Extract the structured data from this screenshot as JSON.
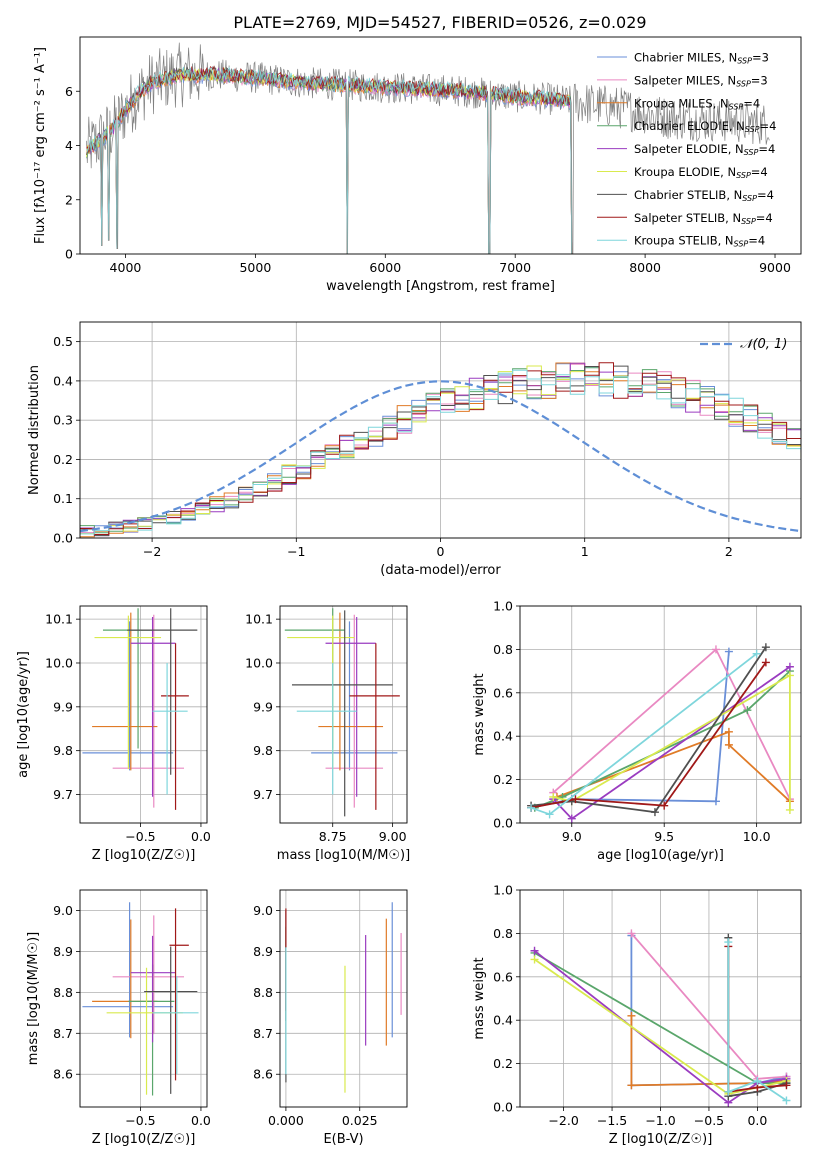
{
  "title": "PLATE=2769, MJD=54527, FIBERID=0526, z=0.029",
  "colors": [
    "#6a8fd8",
    "#e989c2",
    "#e07b27",
    "#5aa66b",
    "#9a3cc0",
    "#d9ea4e",
    "#505050",
    "#a01818",
    "#7fd6dc"
  ],
  "chart_data": [
    {
      "id": "spectrum",
      "type": "line",
      "xlabel": "wavelength [Angstrom, rest frame]",
      "ylabel": "Flux [fλ10⁻¹⁷ erg cm⁻² s⁻¹ A⁻¹]",
      "xlim": [
        3650,
        9200
      ],
      "ylim": [
        0,
        8
      ],
      "xticks": [
        4000,
        5000,
        6000,
        7000,
        8000,
        9000
      ],
      "yticks": [
        0,
        2,
        4,
        6
      ],
      "data_color": "#808080",
      "data_anchors": [
        [
          3700,
          3.8
        ],
        [
          3800,
          4.2
        ],
        [
          3900,
          4.6
        ],
        [
          4000,
          5.3
        ],
        [
          4100,
          5.9
        ],
        [
          4200,
          6.3
        ],
        [
          4400,
          6.6
        ],
        [
          4700,
          6.6
        ],
        [
          5000,
          6.5
        ],
        [
          5400,
          6.3
        ],
        [
          5800,
          6.2
        ],
        [
          6200,
          6.1
        ],
        [
          6600,
          6.0
        ],
        [
          7000,
          5.8
        ],
        [
          7300,
          5.7
        ],
        [
          7450,
          5.6
        ],
        [
          7800,
          5.4
        ],
        [
          8200,
          5.0
        ],
        [
          8600,
          4.9
        ],
        [
          8900,
          4.8
        ]
      ],
      "dips": [
        [
          3820,
          0.3
        ],
        [
          3870,
          0.5
        ],
        [
          3935,
          0.2
        ],
        [
          5710,
          0.0
        ],
        [
          6800,
          0.0
        ],
        [
          7440,
          0.0
        ]
      ],
      "model_xrange": [
        3700,
        7440
      ],
      "legend": [
        "Chabrier MILES, N_SSP=3",
        "Salpeter MILES, N_SSP=3",
        "Kroupa MILES, N_SSP=4",
        "Chabrier ELODIE, N_SSP=4",
        "Salpeter ELODIE, N_SSP=4",
        "Kroupa ELODIE, N_SSP=4",
        "Chabrier STELIB, N_SSP=4",
        "Salpeter STELIB, N_SSP=4",
        "Kroupa STELIB, N_SSP=4"
      ]
    },
    {
      "id": "residual-histogram",
      "type": "line",
      "xlabel": "(data-model)/error",
      "ylabel": "Normed distribution",
      "xlim": [
        -2.5,
        2.5
      ],
      "ylim": [
        0,
        0.55
      ],
      "xticks": [
        -2,
        -1,
        0,
        1,
        2
      ],
      "yticks": [
        0.0,
        0.1,
        0.2,
        0.3,
        0.4,
        0.5
      ],
      "bin_width": 0.1,
      "bin_start": -2.5,
      "hist_base": [
        0.018,
        0.02,
        0.025,
        0.03,
        0.036,
        0.043,
        0.052,
        0.062,
        0.073,
        0.085,
        0.098,
        0.112,
        0.127,
        0.143,
        0.16,
        0.177,
        0.195,
        0.213,
        0.232,
        0.25,
        0.268,
        0.285,
        0.302,
        0.318,
        0.332,
        0.345,
        0.357,
        0.368,
        0.377,
        0.385,
        0.392,
        0.397,
        0.4,
        0.403,
        0.404,
        0.404,
        0.402,
        0.399,
        0.394,
        0.388,
        0.38,
        0.371,
        0.36,
        0.348,
        0.334,
        0.32,
        0.304,
        0.288,
        0.271,
        0.253,
        0.235,
        0.217,
        0.199,
        0.181,
        0.164,
        0.147,
        0.131,
        0.116,
        0.102,
        0.089,
        0.077,
        0.066,
        0.056,
        0.048,
        0.041,
        0.035,
        0.031,
        0.028,
        0.025,
        0.023
      ],
      "gaussian_label": "𝒩(0, 1)",
      "gaussian_color": "#5f8fd6"
    },
    {
      "id": "age-vs-z",
      "type": "scatter",
      "xlabel": "Z [log10(Z/Z☉)]",
      "ylabel": "age  [log10(age/yr)]",
      "xlim": [
        -1.0,
        0.05
      ],
      "ylim": [
        9.635,
        10.13
      ],
      "xticks": [
        -0.5,
        0.0
      ],
      "yticks": [
        9.7,
        9.8,
        9.9,
        10.0,
        10.1
      ],
      "points": [
        {
          "x": -0.59,
          "y": 9.795,
          "xe": [
            0.39,
            0.36
          ],
          "ye": [
            0.04,
            0.3
          ]
        },
        {
          "x": -0.39,
          "y": 9.76,
          "xe": [
            0.34,
            0.25
          ],
          "ye": [
            0.09,
            0.35
          ]
        },
        {
          "x": -0.58,
          "y": 9.855,
          "xe": [
            0.32,
            0.22
          ],
          "ye": [
            0.1,
            0.26
          ]
        },
        {
          "x": -0.52,
          "y": 10.075,
          "xe": [
            0.29,
            0.12
          ],
          "ye": [
            0.27,
            0.05
          ]
        },
        {
          "x": -0.4,
          "y": 10.045,
          "xe": [
            0.18,
            0.19
          ],
          "ye": [
            0.35,
            0.06
          ]
        },
        {
          "x": -0.6,
          "y": 10.058,
          "xe": [
            0.28,
            0.27
          ],
          "ye": [
            0.3,
            0.05
          ]
        },
        {
          "x": -0.25,
          "y": 10.075,
          "xe": [
            0.36,
            0.22
          ],
          "ye": [
            0.33,
            0.05
          ]
        },
        {
          "x": -0.21,
          "y": 9.925,
          "xe": [
            0.12,
            0.11
          ],
          "ye": [
            0.26,
            0.12
          ]
        },
        {
          "x": -0.28,
          "y": 9.89,
          "xe": [
            0.12,
            0.17
          ],
          "ye": [
            0.19,
            0.11
          ]
        }
      ]
    },
    {
      "id": "age-vs-mass",
      "type": "scatter",
      "xlabel": "mass [log10(M/M☉)]",
      "ylabel": "",
      "xlim": [
        8.53,
        9.06
      ],
      "ylim": [
        9.635,
        10.13
      ],
      "xticks": [
        8.75,
        9.0
      ],
      "yticks": [
        9.7,
        9.8,
        9.9,
        10.0,
        10.1
      ],
      "points": [
        {
          "x": 8.82,
          "y": 9.795,
          "xe": [
            0.16,
            0.2
          ],
          "ye": [
            0.04,
            0.3
          ]
        },
        {
          "x": 8.84,
          "y": 9.76,
          "xe": [
            0.12,
            0.12
          ],
          "ye": [
            0.09,
            0.35
          ]
        },
        {
          "x": 8.78,
          "y": 9.855,
          "xe": [
            0.09,
            0.18
          ],
          "ye": [
            0.1,
            0.26
          ]
        },
        {
          "x": 8.75,
          "y": 10.075,
          "xe": [
            0.2,
            0.05
          ],
          "ye": [
            0.27,
            0.05
          ]
        },
        {
          "x": 8.85,
          "y": 10.045,
          "xe": [
            0.13,
            0.08
          ],
          "ye": [
            0.35,
            0.06
          ]
        },
        {
          "x": 8.75,
          "y": 10.058,
          "xe": [
            0.19,
            0.09
          ],
          "ye": [
            0.3,
            0.05
          ]
        },
        {
          "x": 8.8,
          "y": 9.95,
          "xe": [
            0.22,
            0.2
          ],
          "ye": [
            0.3,
            0.17
          ]
        },
        {
          "x": 8.93,
          "y": 9.925,
          "xe": [
            0.11,
            0.1
          ],
          "ye": [
            0.26,
            0.12
          ]
        },
        {
          "x": 8.75,
          "y": 9.89,
          "xe": [
            0.15,
            0.1
          ],
          "ye": [
            0.19,
            0.11
          ]
        }
      ]
    },
    {
      "id": "mass-weight-vs-age",
      "type": "line",
      "xlabel": "age  [log10(age/yr)]",
      "ylabel": "mass weight",
      "xlim": [
        8.72,
        10.24
      ],
      "ylim": [
        0,
        1.0
      ],
      "xticks": [
        9.0,
        9.5,
        10.0
      ],
      "yticks": [
        0.0,
        0.2,
        0.4,
        0.6,
        0.8,
        1.0
      ],
      "series": [
        {
          "x": [
            8.78,
            9.0,
            9.78,
            9.85
          ],
          "y": [
            0.07,
            0.11,
            0.1,
            0.79
          ]
        },
        {
          "x": [
            8.9,
            9.78,
            10.18
          ],
          "y": [
            0.14,
            0.8,
            0.11
          ]
        },
        {
          "x": [
            8.92,
            9.85,
            9.85,
            10.18
          ],
          "y": [
            0.12,
            0.42,
            0.36,
            0.1
          ]
        },
        {
          "x": [
            8.8,
            8.95,
            9.95,
            10.18
          ],
          "y": [
            0.07,
            0.12,
            0.52,
            0.7
          ]
        },
        {
          "x": [
            8.9,
            9.0,
            10.18
          ],
          "y": [
            0.11,
            0.02,
            0.72
          ]
        },
        {
          "x": [
            8.9,
            9.0,
            10.18,
            10.18
          ],
          "y": [
            0.12,
            0.1,
            0.68,
            0.06
          ]
        },
        {
          "x": [
            8.78,
            9.0,
            9.45,
            10.05
          ],
          "y": [
            0.08,
            0.1,
            0.05,
            0.81
          ]
        },
        {
          "x": [
            8.78,
            9.02,
            9.5,
            10.05
          ],
          "y": [
            0.07,
            0.11,
            0.08,
            0.74
          ]
        },
        {
          "x": [
            8.78,
            8.88,
            10.0
          ],
          "y": [
            0.07,
            0.04,
            0.78
          ]
        }
      ]
    },
    {
      "id": "mass-vs-z",
      "type": "scatter",
      "xlabel": "Z [log10(Z/Z☉)]",
      "ylabel": "mass [log10(M/M☉)]",
      "xlim": [
        -1.0,
        0.05
      ],
      "ylim": [
        8.52,
        9.05
      ],
      "xticks": [
        -0.5,
        0.0
      ],
      "yticks": [
        8.6,
        8.7,
        8.8,
        8.9,
        9.0
      ],
      "points": [
        {
          "x": -0.59,
          "y": 8.765,
          "xe": [
            0.39,
            0.36
          ],
          "ye": [
            0.075,
            0.255
          ]
        },
        {
          "x": -0.39,
          "y": 8.838,
          "xe": [
            0.34,
            0.25
          ],
          "ye": [
            0.14,
            0.15
          ]
        },
        {
          "x": -0.58,
          "y": 8.778,
          "xe": [
            0.32,
            0.22
          ],
          "ye": [
            0.09,
            0.2
          ]
        },
        {
          "x": -0.4,
          "y": 8.778,
          "xe": [
            0.2,
            0.18
          ],
          "ye": [
            0.23,
            0.09
          ]
        },
        {
          "x": -0.4,
          "y": 8.848,
          "xe": [
            0.18,
            0.19
          ],
          "ye": [
            0.17,
            0.09
          ]
        },
        {
          "x": -0.45,
          "y": 8.75,
          "xe": [
            0.33,
            0.3
          ],
          "ye": [
            0.2,
            0.11
          ]
        },
        {
          "x": -0.25,
          "y": 8.802,
          "xe": [
            0.22,
            0.22
          ],
          "ye": [
            0.25,
            0.11
          ]
        },
        {
          "x": -0.21,
          "y": 8.915,
          "xe": [
            0.05,
            0.11
          ],
          "ye": [
            0.33,
            0.09
          ]
        },
        {
          "x": -0.2,
          "y": 8.75,
          "xe": [
            0.2,
            0.18
          ],
          "ye": [
            0.15,
            0.09
          ]
        }
      ]
    },
    {
      "id": "mass-vs-ebv",
      "type": "scatter",
      "xlabel": "E(B-V)",
      "ylabel": "",
      "xlim": [
        -0.002,
        0.041
      ],
      "ylim": [
        8.52,
        9.05
      ],
      "xticks": [
        0.0,
        0.025
      ],
      "yticks": [
        8.6,
        8.7,
        8.8,
        8.9,
        9.0
      ],
      "points": [
        {
          "x": 0.036,
          "y": 8.855,
          "ye": [
            0.165,
            0.165
          ]
        },
        {
          "x": 0.039,
          "y": 8.845,
          "ye": [
            0.1,
            0.1
          ]
        },
        {
          "x": 0.034,
          "y": 8.78,
          "ye": [
            0.11,
            0.2
          ]
        },
        {
          "x": 0.0,
          "y": 8.85,
          "ye": [
            0.12,
            0.11
          ]
        },
        {
          "x": 0.027,
          "y": 8.8,
          "ye": [
            0.13,
            0.14
          ]
        },
        {
          "x": 0.02,
          "y": 8.705,
          "ye": [
            0.15,
            0.16
          ]
        },
        {
          "x": 0.0,
          "y": 8.8,
          "ye": [
            0.22,
            0.2
          ]
        },
        {
          "x": 0.0,
          "y": 8.915,
          "ye": [
            0.16,
            0.09
          ]
        },
        {
          "x": 0.0,
          "y": 8.75,
          "ye": [
            0.15,
            0.16
          ]
        }
      ]
    },
    {
      "id": "mass-weight-vs-z",
      "type": "line",
      "xlabel": "Z [log10(Z/Z☉)]",
      "ylabel": "mass weight",
      "xlim": [
        -2.45,
        0.45
      ],
      "ylim": [
        0,
        1.0
      ],
      "xticks": [
        -2.0,
        -1.5,
        -1.0,
        -0.5,
        0.0
      ],
      "yticks": [
        0.0,
        0.2,
        0.4,
        0.6,
        0.8,
        1.0
      ],
      "series": [
        {
          "x": [
            -1.3,
            -1.3,
            0.0,
            0.3
          ],
          "y": [
            0.79,
            0.1,
            0.11,
            0.14
          ]
        },
        {
          "x": [
            -1.3,
            0.0,
            0.3
          ],
          "y": [
            0.8,
            0.13,
            0.14
          ]
        },
        {
          "x": [
            -1.3,
            -1.3,
            0.0,
            0.3
          ],
          "y": [
            0.42,
            0.1,
            0.11,
            0.12
          ]
        },
        {
          "x": [
            -2.3,
            0.0,
            0.3
          ],
          "y": [
            0.71,
            0.11,
            0.11
          ]
        },
        {
          "x": [
            -2.3,
            -0.3,
            0.0,
            0.3
          ],
          "y": [
            0.72,
            0.02,
            0.11,
            0.13
          ]
        },
        {
          "x": [
            -2.3,
            -0.3,
            0.3
          ],
          "y": [
            0.68,
            0.06,
            0.12
          ]
        },
        {
          "x": [
            -0.3,
            -0.3,
            0.0,
            0.3
          ],
          "y": [
            0.78,
            0.05,
            0.07,
            0.11
          ]
        },
        {
          "x": [
            -0.3,
            -0.3,
            0.0,
            0.3
          ],
          "y": [
            0.74,
            0.07,
            0.09,
            0.1
          ]
        },
        {
          "x": [
            -0.3,
            -0.3,
            0.0,
            0.3
          ],
          "y": [
            0.76,
            0.07,
            0.12,
            0.03
          ]
        }
      ]
    }
  ]
}
